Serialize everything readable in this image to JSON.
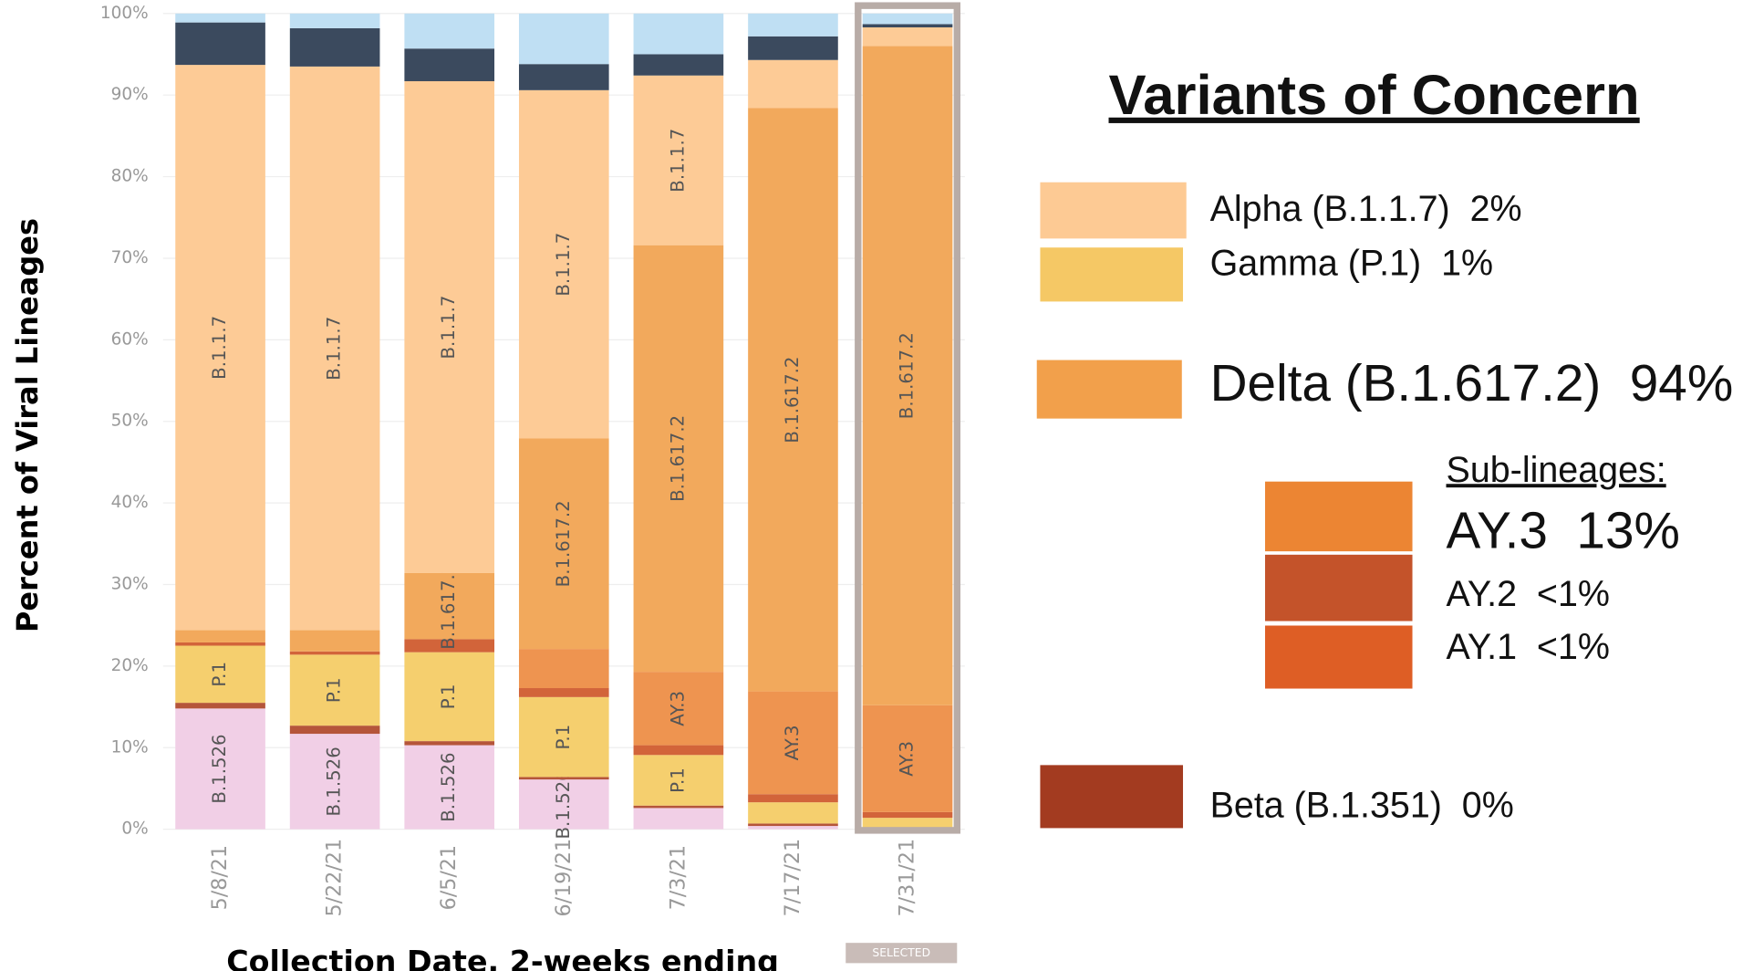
{
  "chart_data": {
    "type": "bar",
    "stacked": true,
    "y_label": "Percent of Viral Lineages",
    "x_label": "Collection Date, 2-weeks ending",
    "categories": [
      "5/8/21",
      "5/22/21",
      "6/5/21",
      "6/19/21",
      "7/3/21",
      "7/17/21",
      "7/31/21"
    ],
    "series": [
      {
        "name": "B.1.526",
        "color": "#f1cfe6",
        "values": [
          14.8,
          11.7,
          10.3,
          6.1,
          2.6,
          0.4,
          0
        ]
      },
      {
        "name": null,
        "color": "#b5553a",
        "values": [
          0.7,
          1.0,
          0.5,
          0.3,
          0.3,
          0.3,
          0.2
        ]
      },
      {
        "name": "P.1",
        "color": "#f5cf6e",
        "values": [
          7.0,
          8.7,
          10.9,
          9.8,
          6.2,
          2.6,
          1.2
        ]
      },
      {
        "name": null,
        "color": "#d2643a",
        "values": [
          0.4,
          0.4,
          1.6,
          1.1,
          1.2,
          1.0,
          0.7
        ]
      },
      {
        "name": "AY.3",
        "color": "#ee9450",
        "values": [
          0,
          0,
          0,
          4.8,
          9.0,
          12.6,
          13.1
        ]
      },
      {
        "name": "B.1.617.2",
        "color": "#f2a95c",
        "values": [
          1.5,
          2.6,
          8.1,
          25.8,
          52.3,
          71.5,
          80.8
        ]
      },
      {
        "name": "B.1.1.7",
        "color": "#fdcb96",
        "values": [
          69.3,
          69.1,
          60.3,
          42.7,
          20.8,
          5.9,
          2.3
        ]
      },
      {
        "name": null,
        "color": "#3b4a5e",
        "values": [
          5.2,
          4.7,
          4.0,
          3.2,
          2.6,
          2.9,
          0.4
        ]
      },
      {
        "name": null,
        "color": "#bfdff3",
        "values": [
          1.1,
          1.8,
          4.3,
          6.2,
          5.0,
          2.8,
          1.3
        ]
      }
    ],
    "ylim": [
      0,
      100
    ],
    "yticks": [
      {
        "value": 0,
        "label": "0%"
      },
      {
        "value": 10,
        "label": "10%"
      },
      {
        "value": 20,
        "label": "20%"
      },
      {
        "value": 30,
        "label": "30%"
      },
      {
        "value": 40,
        "label": "40%"
      },
      {
        "value": 50,
        "label": "50%"
      },
      {
        "value": 60,
        "label": "60%"
      },
      {
        "value": 70,
        "label": "70%"
      },
      {
        "value": 80,
        "label": "80%"
      },
      {
        "value": 90,
        "label": "90%"
      },
      {
        "value": 100,
        "label": "100%"
      }
    ],
    "grid": true,
    "selected_index": 6,
    "selected_label": "SELECTED"
  },
  "legend_panel": {
    "title": "Variants of Concern",
    "items": [
      {
        "label": "Alpha (B.1.1.7)  2%",
        "color": "#fdca94"
      },
      {
        "label": "Gamma (P.1)  1%",
        "color": "#f5c865"
      },
      {
        "label": "Delta (B.1.617.2)  94%",
        "color": "#f2a04b"
      }
    ],
    "sub_heading": "Sub-lineages:",
    "sub_items": [
      {
        "label": "AY.3  13%",
        "color": "#ec8533"
      },
      {
        "label": "AY.2  <1%",
        "color": "#c4532a"
      },
      {
        "label": "AY.1  <1%",
        "color": "#de5e25"
      }
    ],
    "beta": {
      "label": "Beta (B.1.351)  0%",
      "color": "#a33b20"
    }
  }
}
